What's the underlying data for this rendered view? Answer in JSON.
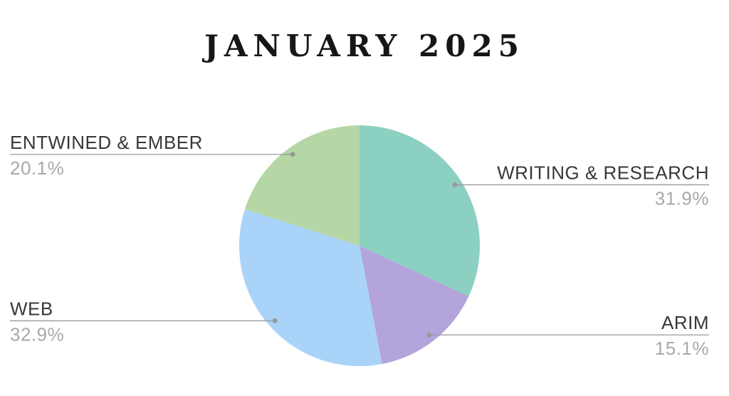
{
  "chart_data": {
    "type": "pie",
    "title": "JANUARY 2025",
    "unit": "%",
    "direction": "clockwise",
    "start_angle_deg": 0,
    "legend_position": "callout-labels",
    "background_color": "#ffffff",
    "title_color": "#161616",
    "label_color": "#383838",
    "pct_color": "#a9a9a9",
    "leader_line_color": "#999999",
    "slices": [
      {
        "label": "WRITING & RESEARCH",
        "value": 31.9,
        "display": "31.9%",
        "color": "#8CD0C1",
        "side": "right"
      },
      {
        "label": "ARIM",
        "value": 15.1,
        "display": "15.1%",
        "color": "#B3A4DB",
        "side": "right"
      },
      {
        "label": "WEB",
        "value": 32.9,
        "display": "32.9%",
        "color": "#A9D3F8",
        "side": "left"
      },
      {
        "label": "ENTWINED & EMBER",
        "value": 20.1,
        "display": "20.1%",
        "color": "#B5D7A6",
        "side": "left"
      }
    ]
  }
}
